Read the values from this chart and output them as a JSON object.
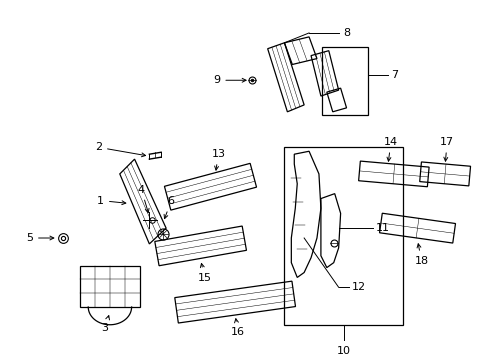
{
  "bg_color": "#ffffff",
  "fg_color": "#000000",
  "fig_width": 4.89,
  "fig_height": 3.6,
  "dpi": 100
}
